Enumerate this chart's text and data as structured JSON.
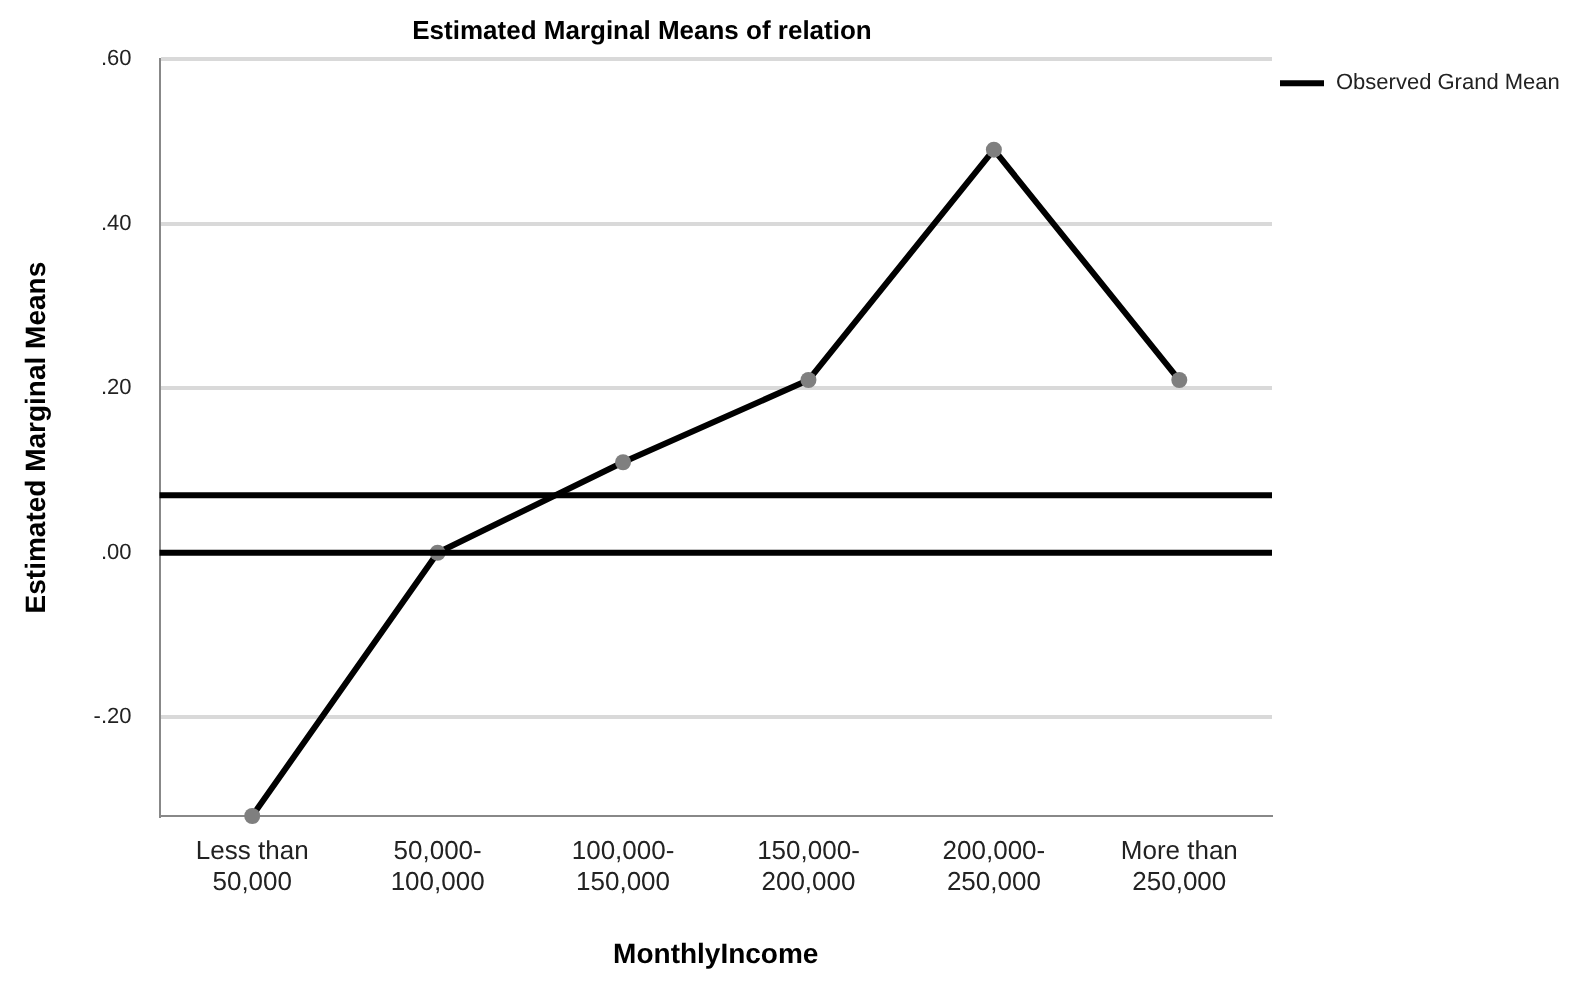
{
  "chart_data": {
    "type": "line",
    "title": "Estimated Marginal Means of relation",
    "xlabel": "MonthlyIncome",
    "ylabel": "Estimated Marginal Means",
    "categories": [
      "Less than 50,000",
      "50,000-100,000",
      "100,000-150,000",
      "150,000-200,000",
      "200,000-250,000",
      "More than 250,000"
    ],
    "series": [
      {
        "color": "#000000",
        "values": [
          -0.32,
          0.0,
          0.11,
          0.21,
          0.49,
          0.21
        ]
      }
    ],
    "ylim": [
      -0.32,
      0.6
    ],
    "yticks": [
      {
        "value": -0.2,
        "label": "-.20"
      },
      {
        "value": 0,
        "label": ".00"
      },
      {
        "value": 0.2,
        "label": ".20"
      },
      {
        "value": 0.4,
        "label": ".40"
      },
      {
        "value": 0.6,
        "label": ".60"
      }
    ],
    "ref_lines": [
      {
        "axis": "y",
        "value": 0.07,
        "label": "Observed Grand Mean",
        "color": "#000000"
      },
      {
        "axis": "y",
        "value": 0,
        "color": "#000000"
      }
    ],
    "grid": "y",
    "marker": "circle",
    "line_style": "solid",
    "legend": "top right"
  }
}
